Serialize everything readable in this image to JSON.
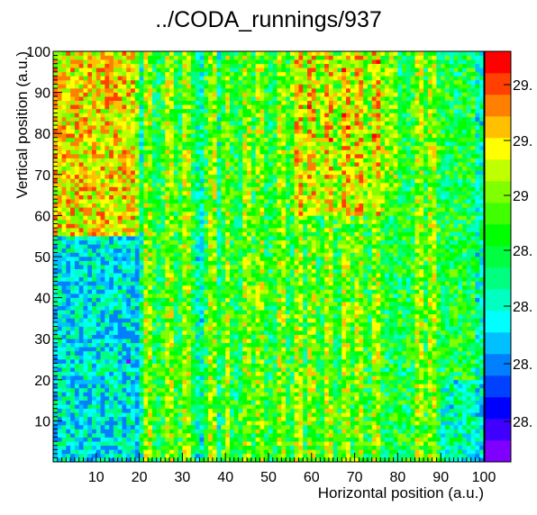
{
  "chart_data": {
    "type": "heatmap",
    "title": "../CODA_runnings/937",
    "xlabel": "Horizontal position (a.u.)",
    "ylabel": "Vertical position (a.u.)",
    "xlim": [
      0,
      100
    ],
    "ylim": [
      0,
      100
    ],
    "x_ticks": [
      "10",
      "20",
      "30",
      "40",
      "50",
      "60",
      "70",
      "80",
      "90",
      "100"
    ],
    "y_ticks": [
      "10",
      "20",
      "30",
      "40",
      "50",
      "60",
      "70",
      "80",
      "90",
      "100"
    ],
    "x_tick_values": [
      10,
      20,
      30,
      40,
      50,
      60,
      70,
      80,
      90,
      100
    ],
    "y_tick_values": [
      10,
      20,
      30,
      40,
      50,
      60,
      70,
      80,
      90,
      100
    ],
    "bins": [
      100,
      100
    ],
    "colorbar": {
      "labels": [
        "28.",
        "28.",
        "28.",
        "28.",
        "29",
        "29.",
        "29."
      ],
      "approx_range": [
        28.1,
        29.6
      ],
      "palette": [
        "#8000ff",
        "#4000ff",
        "#0000ff",
        "#0040ff",
        "#0080ff",
        "#00c0ff",
        "#00ffff",
        "#00ffc0",
        "#00ff80",
        "#00ff40",
        "#00ff00",
        "#40ff00",
        "#80ff00",
        "#c0ff00",
        "#ffff00",
        "#ffc000",
        "#ff8000",
        "#ff4000",
        "#ff0000"
      ]
    },
    "description_features": {
      "hot_columns_x": [
        22,
        27,
        31,
        37,
        40,
        45,
        48,
        53,
        57,
        60,
        64,
        68,
        71,
        75,
        85,
        88
      ],
      "cool_columns_x": [
        20,
        34,
        39,
        99
      ],
      "low_outlier_bin": [
        17.5,
        24.5
      ]
    }
  }
}
